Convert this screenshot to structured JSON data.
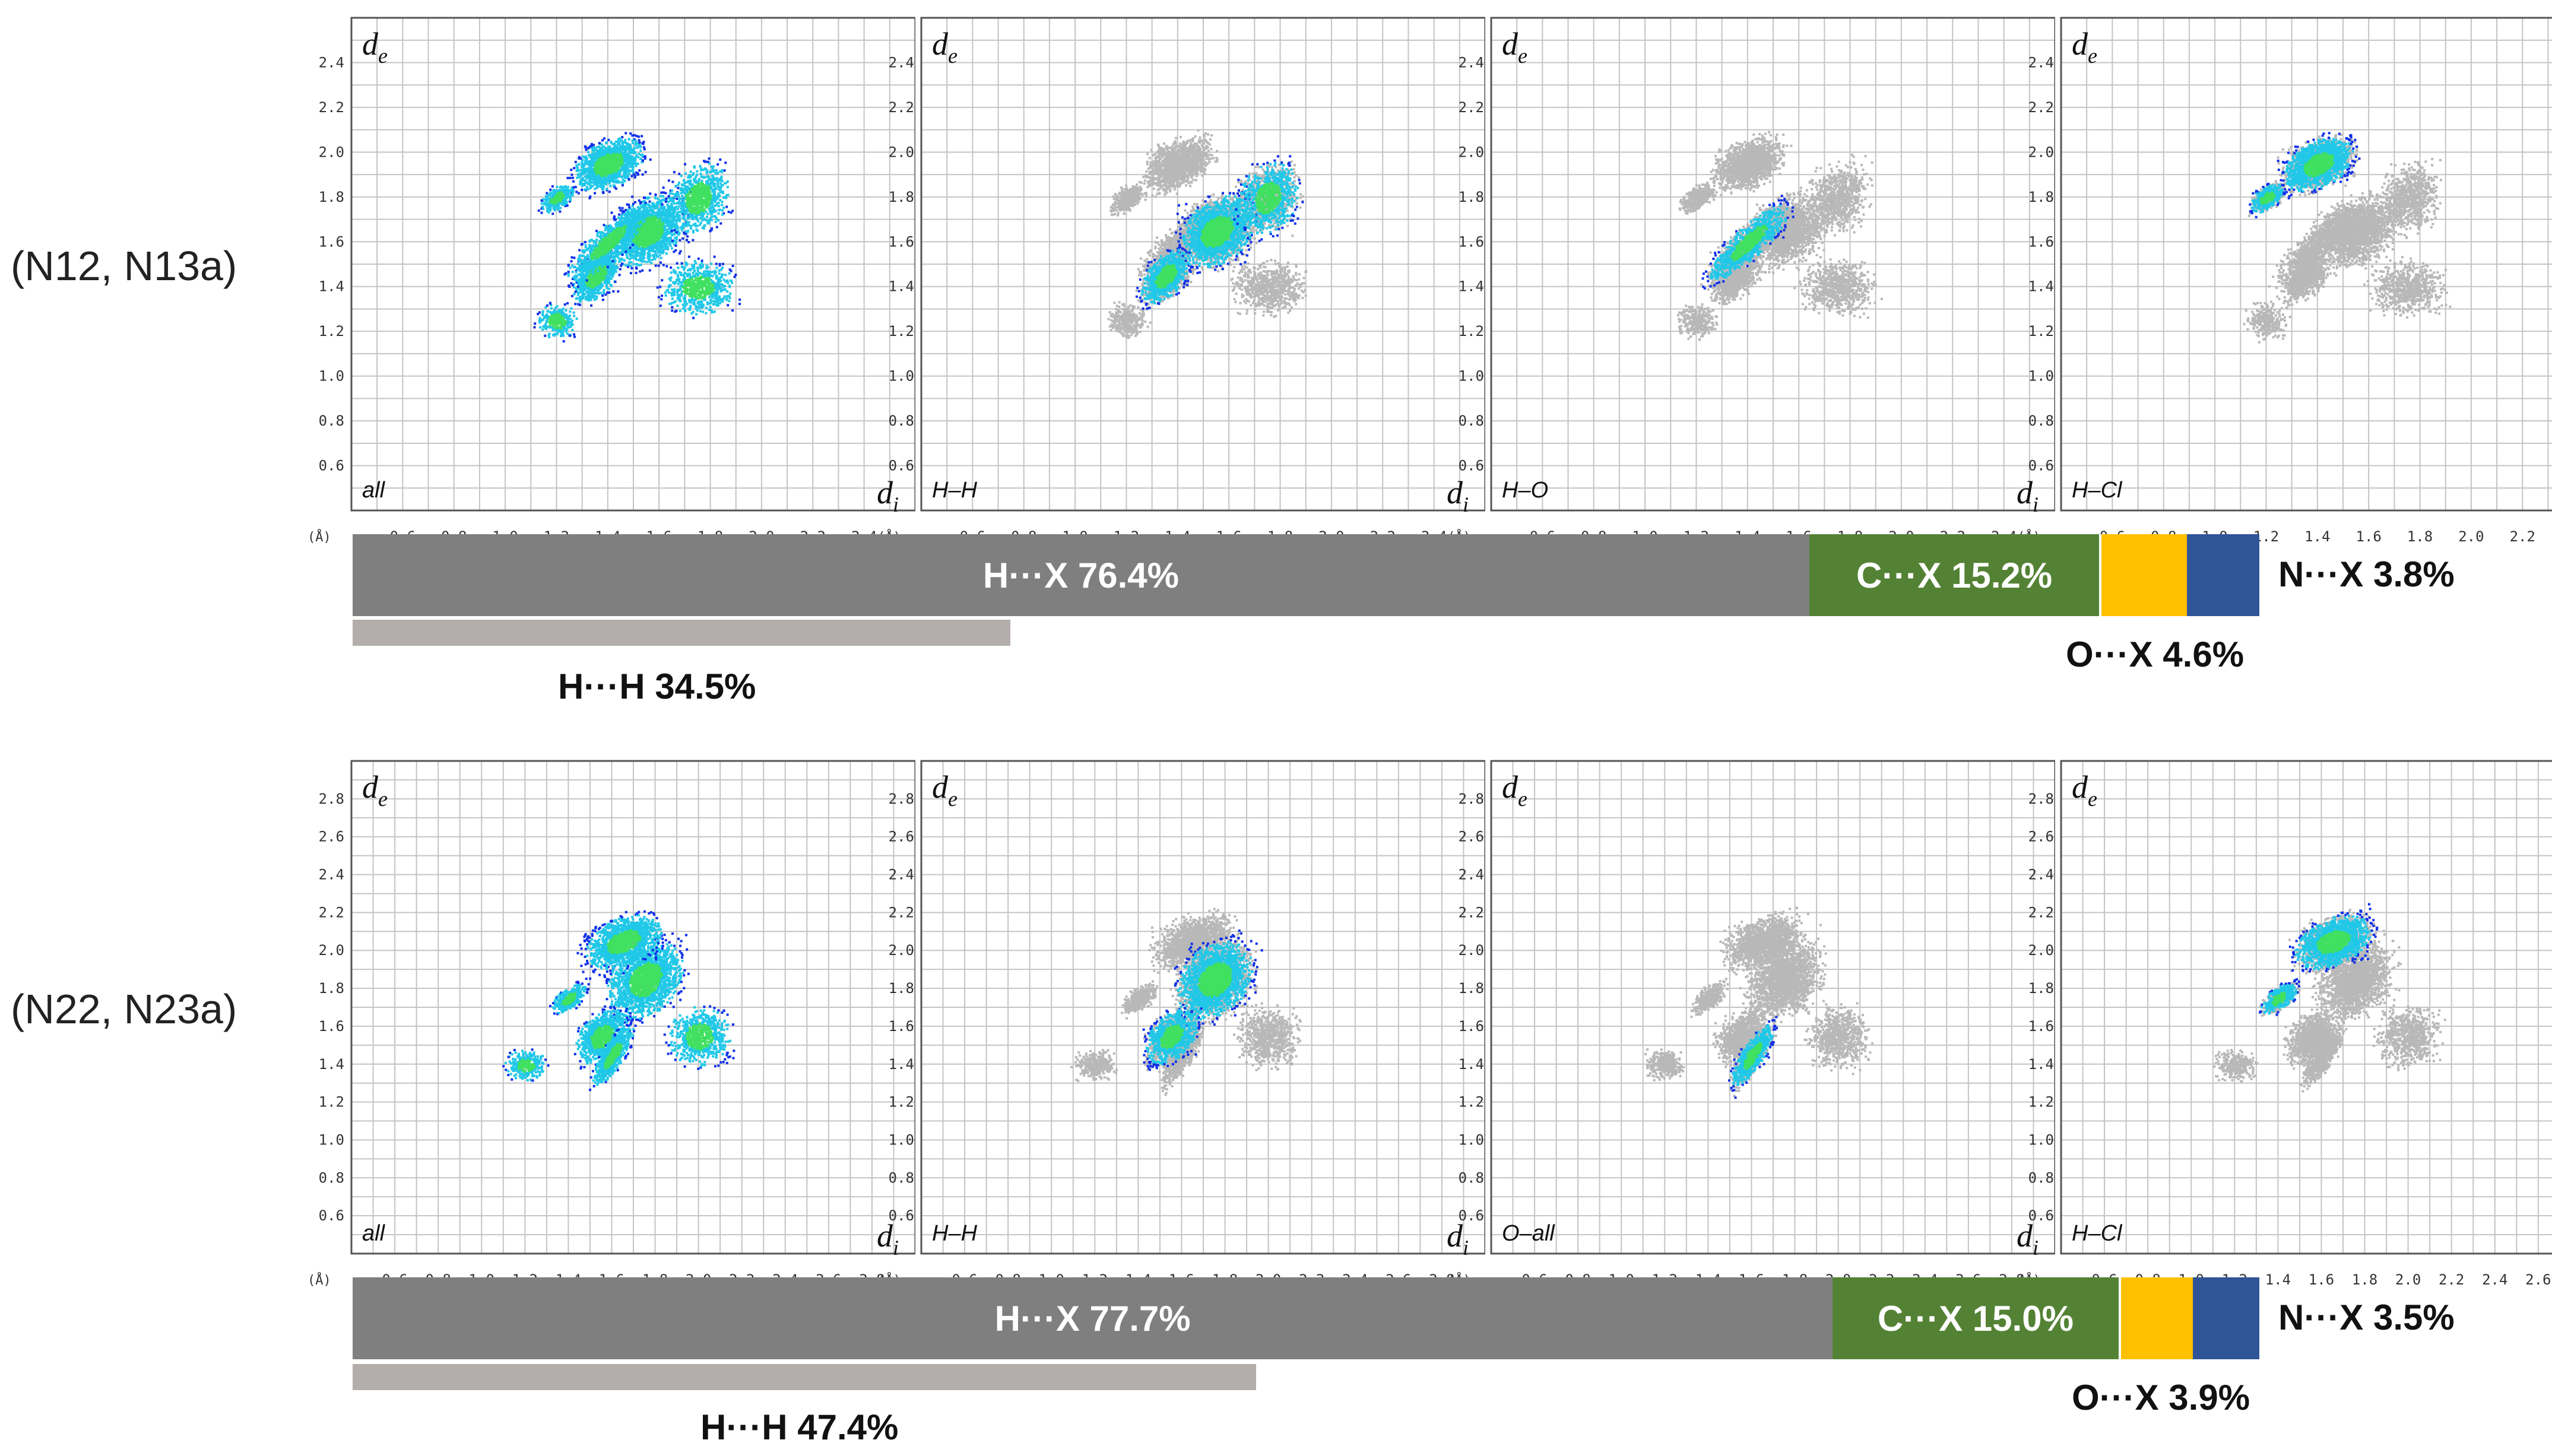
{
  "axis_unit": "(Å)",
  "de_label": "d",
  "de_sub": "e",
  "di_label": "d",
  "di_sub": "i",
  "colors": {
    "grey_points": "#b8b8b8",
    "blue_points": "#1030e8",
    "cyan": "#20c8e8",
    "green": "#40e060",
    "grid": "#c4c4c4"
  },
  "rows": [
    {
      "label": "(N12, N13a)",
      "ticks": [
        "0.6",
        "0.8",
        "1.0",
        "1.2",
        "1.4",
        "1.6",
        "1.8",
        "2.0",
        "2.2",
        "2.4"
      ],
      "plots": [
        {
          "label": "all",
          "highlight": "all"
        },
        {
          "label": "H–H",
          "highlight": "HH"
        },
        {
          "label": "H–O",
          "highlight": "HO"
        },
        {
          "label": "H–Cl",
          "highlight": "HCl"
        }
      ],
      "segments": [
        {
          "key": "H",
          "text": "H···X  76.4%",
          "value": 76.4,
          "color": "#7f7f7f"
        },
        {
          "key": "C",
          "text": "C···X  15.2%",
          "value": 15.2,
          "color": "#548235"
        },
        {
          "key": "O",
          "text": "",
          "value": 4.6,
          "color": "#ffc000"
        },
        {
          "key": "N",
          "text": "",
          "value": 3.8,
          "color": "#2f5597"
        }
      ],
      "hh_value": 34.5,
      "hh_label": "H···H  34.5%",
      "n_label": "N···X  3.8%",
      "o_label": "O···X 4.6%"
    },
    {
      "label": "(N22, N23a)",
      "ticks": [
        "0.6",
        "0.8",
        "1.0",
        "1.2",
        "1.4",
        "1.6",
        "1.8",
        "2.0",
        "2.2",
        "2.4",
        "2.6",
        "2.8"
      ],
      "plots": [
        {
          "label": "all",
          "highlight": "all"
        },
        {
          "label": "H–H",
          "highlight": "HH"
        },
        {
          "label": "O–all",
          "highlight": "Oall"
        },
        {
          "label": "H–Cl",
          "highlight": "HCl"
        }
      ],
      "segments": [
        {
          "key": "H",
          "text": "H···X  77.7%",
          "value": 77.7,
          "color": "#7f7f7f"
        },
        {
          "key": "C",
          "text": "C···X  15.0%",
          "value": 15.0,
          "color": "#548235"
        },
        {
          "key": "O",
          "text": "",
          "value": 3.9,
          "color": "#ffc000"
        },
        {
          "key": "N",
          "text": "",
          "value": 3.5,
          "color": "#2f5597"
        }
      ],
      "hh_value": 47.4,
      "hh_label": "H···H  47.4%",
      "n_label": "N···X  3.5%",
      "o_label": "O···X 3.9%"
    }
  ]
}
